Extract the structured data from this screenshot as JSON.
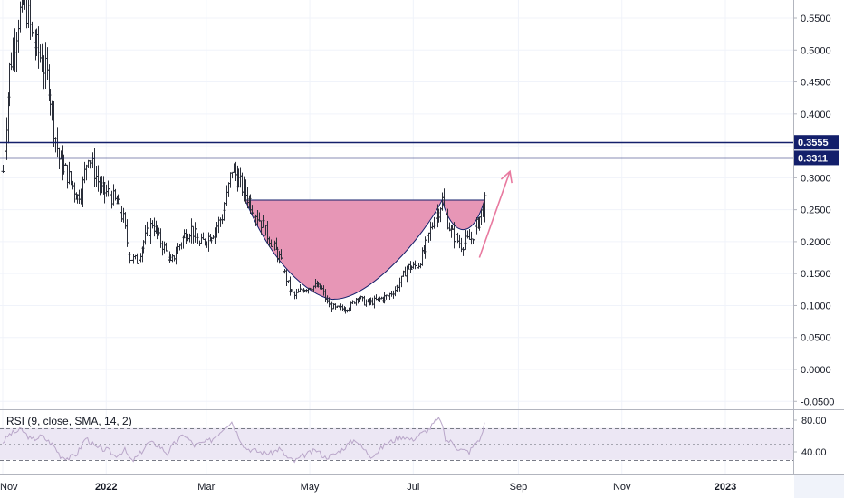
{
  "chart_data": [
    {
      "type": "ohlc",
      "ylim": [
        -0.05,
        0.58
      ],
      "y_ticks": [
        "0.5500",
        "0.5000",
        "0.4500",
        "0.4000",
        "0.3500",
        "0.3000",
        "0.2500",
        "0.2000",
        "0.1500",
        "0.1000",
        "0.0500",
        "0.0000",
        "-0.0500"
      ],
      "x_ticks": [
        "Nov",
        "2022",
        "Mar",
        "May",
        "Jul",
        "Sep",
        "Nov",
        "2023"
      ],
      "horizontal_levels": [
        {
          "value": 0.3555,
          "label": "0.3555",
          "color": "#131f6b"
        },
        {
          "value": 0.3311,
          "label": "0.3311",
          "color": "#131f6b"
        }
      ],
      "price_path": [
        [
          "2021-11-01",
          0.31
        ],
        [
          "2021-11-05",
          0.47
        ],
        [
          "2021-11-10",
          0.55
        ],
        [
          "2021-11-14",
          0.58
        ],
        [
          "2021-11-18",
          0.52
        ],
        [
          "2021-11-23",
          0.49
        ],
        [
          "2021-11-28",
          0.45
        ],
        [
          "2021-12-01",
          0.38
        ],
        [
          "2021-12-04",
          0.33
        ],
        [
          "2021-12-10",
          0.3
        ],
        [
          "2021-12-15",
          0.27
        ],
        [
          "2021-12-18",
          0.29
        ],
        [
          "2021-12-21",
          0.34
        ],
        [
          "2021-12-25",
          0.31
        ],
        [
          "2021-12-29",
          0.28
        ],
        [
          "2022-01-03",
          0.275
        ],
        [
          "2022-01-08",
          0.255
        ],
        [
          "2022-01-11",
          0.235
        ],
        [
          "2022-01-13",
          0.2
        ],
        [
          "2022-01-15",
          0.175
        ],
        [
          "2022-01-19",
          0.17
        ],
        [
          "2022-01-23",
          0.2
        ],
        [
          "2022-01-28",
          0.23
        ],
        [
          "2022-02-01",
          0.205
        ],
        [
          "2022-02-04",
          0.19
        ],
        [
          "2022-02-08",
          0.165
        ],
        [
          "2022-02-12",
          0.19
        ],
        [
          "2022-02-16",
          0.21
        ],
        [
          "2022-02-20",
          0.22
        ],
        [
          "2022-02-25",
          0.195
        ],
        [
          "2022-03-01",
          0.205
        ],
        [
          "2022-03-05",
          0.215
        ],
        [
          "2022-03-10",
          0.24
        ],
        [
          "2022-03-13",
          0.27
        ],
        [
          "2022-03-16",
          0.315
        ],
        [
          "2022-03-19",
          0.3
        ],
        [
          "2022-03-23",
          0.28
        ],
        [
          "2022-03-27",
          0.26
        ],
        [
          "2022-04-01",
          0.235
        ],
        [
          "2022-04-05",
          0.215
        ],
        [
          "2022-04-09",
          0.195
        ],
        [
          "2022-04-13",
          0.175
        ],
        [
          "2022-04-16",
          0.15
        ],
        [
          "2022-04-19",
          0.125
        ],
        [
          "2022-04-22",
          0.115
        ],
        [
          "2022-04-26",
          0.125
        ],
        [
          "2022-05-01",
          0.13
        ],
        [
          "2022-05-05",
          0.13
        ],
        [
          "2022-05-08",
          0.125
        ],
        [
          "2022-05-11",
          0.105
        ],
        [
          "2022-05-16",
          0.095
        ],
        [
          "2022-05-21",
          0.095
        ],
        [
          "2022-05-25",
          0.1
        ],
        [
          "2022-05-29",
          0.115
        ],
        [
          "2022-06-02",
          0.105
        ],
        [
          "2022-06-06",
          0.105
        ],
        [
          "2022-06-11",
          0.11
        ],
        [
          "2022-06-16",
          0.115
        ],
        [
          "2022-06-20",
          0.125
        ],
        [
          "2022-06-24",
          0.14
        ],
        [
          "2022-06-27",
          0.16
        ],
        [
          "2022-07-01",
          0.16
        ],
        [
          "2022-07-04",
          0.165
        ],
        [
          "2022-07-07",
          0.185
        ],
        [
          "2022-07-10",
          0.21
        ],
        [
          "2022-07-13",
          0.235
        ],
        [
          "2022-07-16",
          0.25
        ],
        [
          "2022-07-18",
          0.265
        ],
        [
          "2022-07-20",
          0.24
        ],
        [
          "2022-07-23",
          0.215
        ],
        [
          "2022-07-26",
          0.205
        ],
        [
          "2022-07-29",
          0.195
        ],
        [
          "2022-08-01",
          0.2
        ],
        [
          "2022-08-04",
          0.205
        ],
        [
          "2022-08-07",
          0.225
        ],
        [
          "2022-08-10",
          0.245
        ],
        [
          "2022-08-12",
          0.26
        ]
      ],
      "cup_and_handle": {
        "rim_value": 0.265,
        "cup_start": "2022-03-24",
        "cup_end": "2022-07-18",
        "cup_bottom_value": 0.11,
        "handle_end": "2022-08-12",
        "handle_bottom_value": 0.205,
        "fill_color": "#e690b2"
      },
      "arrow": {
        "from": [
          "2022-08-09",
          0.175
        ],
        "to": [
          "2022-08-27",
          0.31
        ],
        "color": "#e8799f"
      }
    },
    {
      "type": "line",
      "label": "RSI (9, close, SMA, 14, 2)",
      "y_ticks": [
        "80.00",
        "40.00"
      ],
      "ylim": [
        18,
        92
      ],
      "bands": [
        70,
        50,
        30
      ],
      "rsi_path": [
        [
          "2021-11-01",
          52
        ],
        [
          "2021-11-05",
          62
        ],
        [
          "2021-11-12",
          68
        ],
        [
          "2021-11-18",
          55
        ],
        [
          "2021-11-24",
          60
        ],
        [
          "2021-12-01",
          48
        ],
        [
          "2021-12-05",
          35
        ],
        [
          "2021-12-10",
          32
        ],
        [
          "2021-12-15",
          38
        ],
        [
          "2021-12-20",
          58
        ],
        [
          "2021-12-26",
          45
        ],
        [
          "2022-01-02",
          42
        ],
        [
          "2022-01-06",
          35
        ],
        [
          "2022-01-12",
          42
        ],
        [
          "2022-01-16",
          28
        ],
        [
          "2022-01-20",
          35
        ],
        [
          "2022-01-26",
          52
        ],
        [
          "2022-02-01",
          48
        ],
        [
          "2022-02-06",
          38
        ],
        [
          "2022-02-10",
          50
        ],
        [
          "2022-02-16",
          62
        ],
        [
          "2022-02-22",
          48
        ],
        [
          "2022-02-28",
          52
        ],
        [
          "2022-03-04",
          55
        ],
        [
          "2022-03-09",
          65
        ],
        [
          "2022-03-12",
          72
        ],
        [
          "2022-03-16",
          78
        ],
        [
          "2022-03-20",
          60
        ],
        [
          "2022-03-24",
          45
        ],
        [
          "2022-04-01",
          40
        ],
        [
          "2022-04-08",
          38
        ],
        [
          "2022-04-13",
          44
        ],
        [
          "2022-04-18",
          32
        ],
        [
          "2022-04-22",
          28
        ],
        [
          "2022-04-28",
          36
        ],
        [
          "2022-05-05",
          42
        ],
        [
          "2022-05-10",
          33
        ],
        [
          "2022-05-15",
          36
        ],
        [
          "2022-05-20",
          43
        ],
        [
          "2022-05-25",
          52
        ],
        [
          "2022-05-28",
          56
        ],
        [
          "2022-06-01",
          45
        ],
        [
          "2022-06-06",
          35
        ],
        [
          "2022-06-10",
          40
        ],
        [
          "2022-06-15",
          50
        ],
        [
          "2022-06-20",
          55
        ],
        [
          "2022-06-25",
          60
        ],
        [
          "2022-06-30",
          55
        ],
        [
          "2022-07-05",
          62
        ],
        [
          "2022-07-10",
          68
        ],
        [
          "2022-07-14",
          78
        ],
        [
          "2022-07-17",
          82
        ],
        [
          "2022-07-20",
          55
        ],
        [
          "2022-07-24",
          52
        ],
        [
          "2022-07-27",
          45
        ],
        [
          "2022-07-30",
          42
        ],
        [
          "2022-08-03",
          40
        ],
        [
          "2022-08-07",
          52
        ],
        [
          "2022-08-10",
          58
        ],
        [
          "2022-08-12",
          76
        ]
      ]
    }
  ]
}
